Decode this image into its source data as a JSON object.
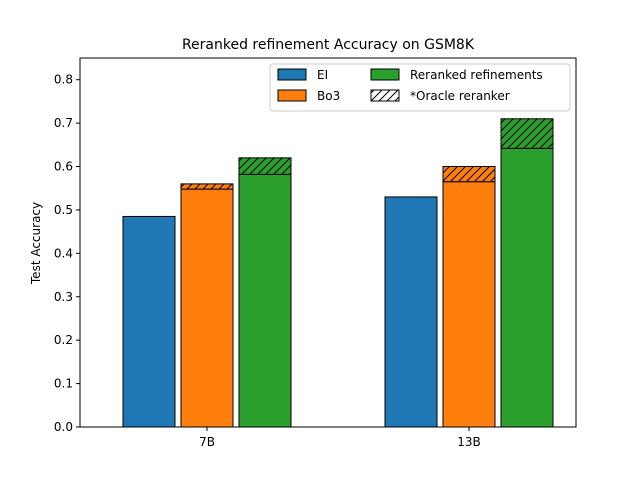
{
  "chart_data": {
    "type": "bar",
    "title": "Reranked refinement Accuracy on GSM8K",
    "xlabel": "",
    "ylabel": "Test Accuracy",
    "ylim": [
      0,
      0.85
    ],
    "yticks": [
      0.0,
      0.1,
      0.2,
      0.3,
      0.4,
      0.5,
      0.6,
      0.7,
      0.8
    ],
    "categories": [
      "7B",
      "13B"
    ],
    "grid": false,
    "legend_placement": "top-right",
    "series": [
      {
        "name": "EI",
        "color": "#1f77b4",
        "values": [
          0.485,
          0.53
        ],
        "oracle_values": [
          null,
          null
        ]
      },
      {
        "name": "Bo3",
        "color": "#ff7f0e",
        "values": [
          0.548,
          0.565
        ],
        "oracle_values": [
          0.56,
          0.6
        ]
      },
      {
        "name": "Reranked refinements",
        "color": "#2ca02c",
        "values": [
          0.582,
          0.642
        ],
        "oracle_values": [
          0.62,
          0.71
        ]
      }
    ],
    "oracle_legend": "*Oracle reranker"
  }
}
